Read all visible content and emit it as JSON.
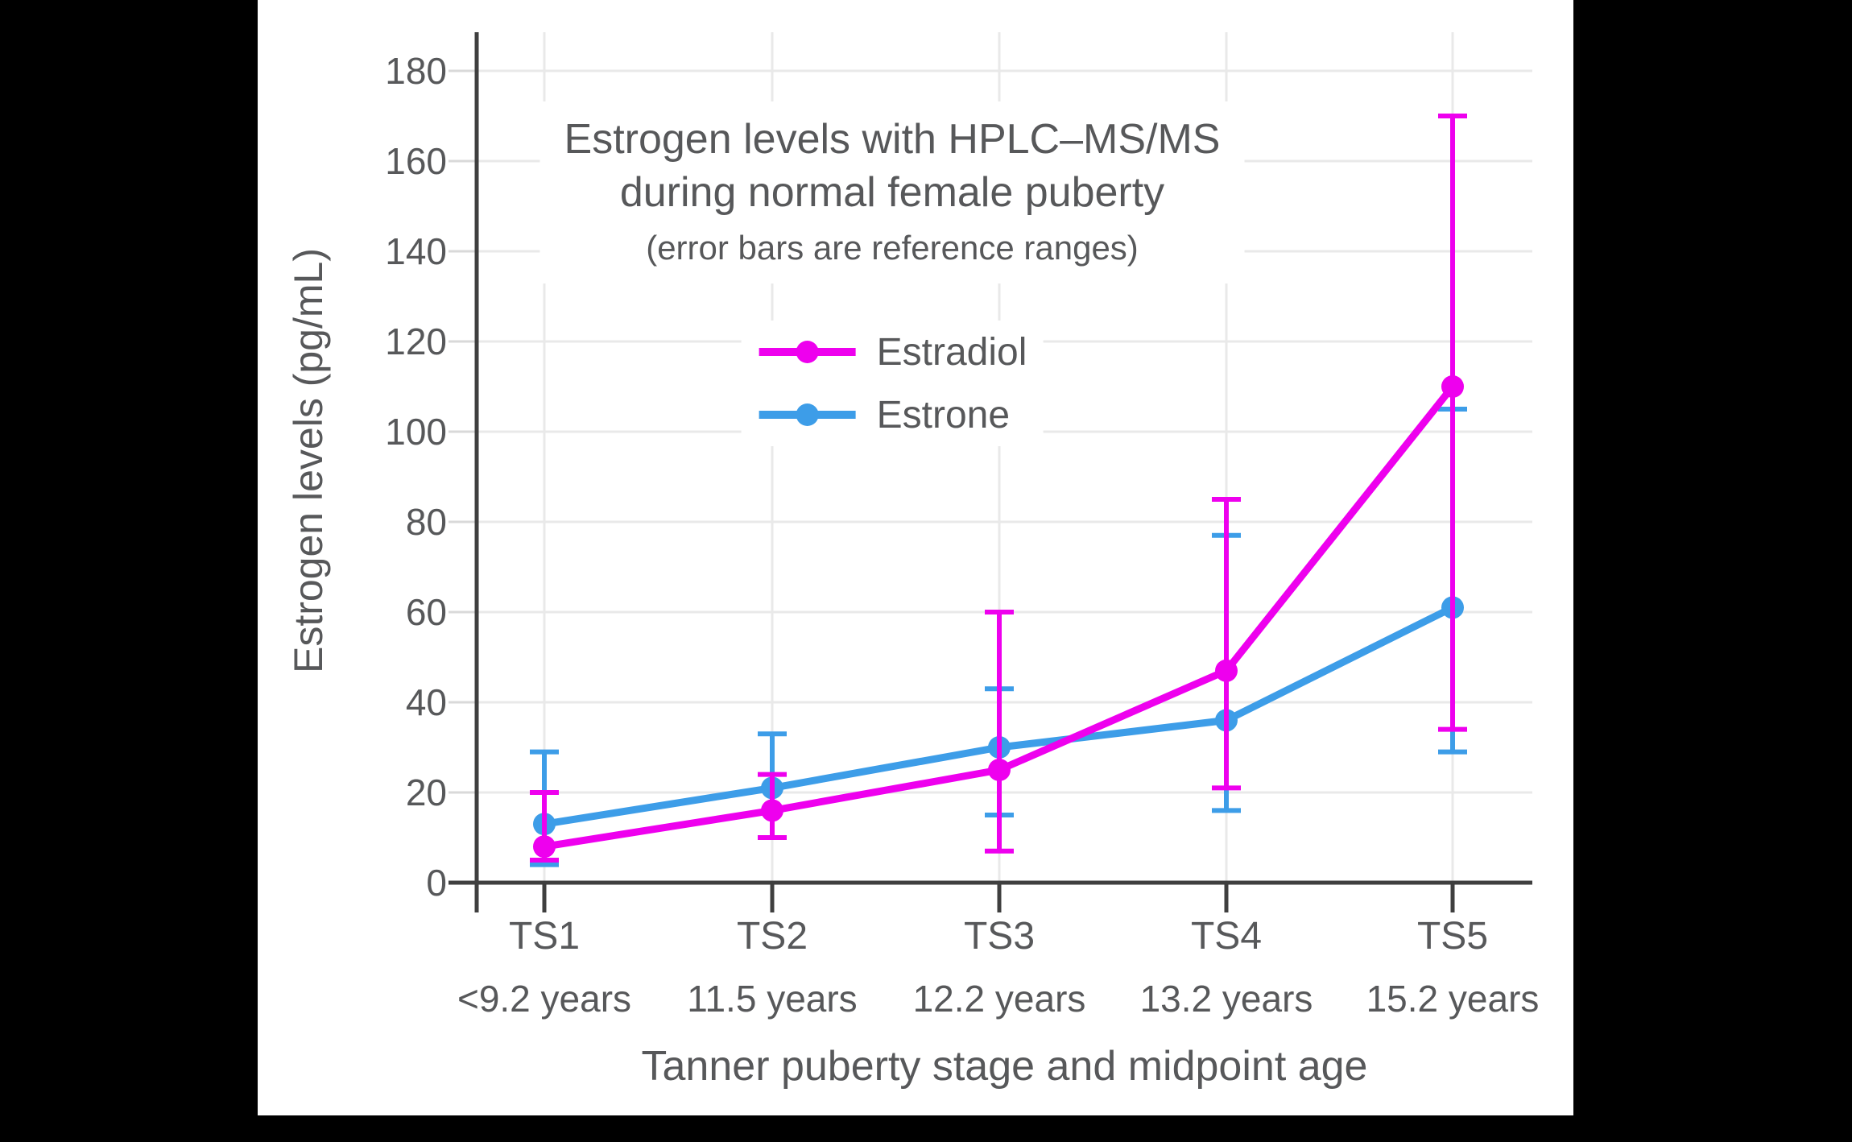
{
  "page": {
    "background_color": "#000000",
    "card_background_color": "#ffffff"
  },
  "colors": {
    "text": "#57585a",
    "axis": "#3f3f3f",
    "gridline": "#e9e9e9",
    "tick": "#d9d9d9",
    "estradiol": "#ee00ee",
    "estrone": "#3d9de8"
  },
  "chart_data": {
    "type": "line",
    "title": [
      "Estrogen levels with HPLC–MS/MS",
      "during normal female puberty"
    ],
    "subtitle": "(error bars are reference ranges)",
    "xlabel": "Tanner puberty stage and midpoint age",
    "ylabel": "Estrogen levels (pg/mL)",
    "units": "pg/mL",
    "ylim": [
      0,
      180
    ],
    "yticks": [
      0,
      20,
      40,
      60,
      80,
      100,
      120,
      140,
      160,
      180
    ],
    "grid": true,
    "legend_position": "upper-center",
    "error_bars": "reference ranges",
    "categories": [
      {
        "stage": "TS1",
        "age": "<9.2 years"
      },
      {
        "stage": "TS2",
        "age": "11.5 years"
      },
      {
        "stage": "TS3",
        "age": "12.2 years"
      },
      {
        "stage": "TS4",
        "age": "13.2 years"
      },
      {
        "stage": "TS5",
        "age": "15.2 years"
      }
    ],
    "series": [
      {
        "name": "Estradiol",
        "color": "#ee00ee",
        "values": [
          8,
          16,
          25,
          47,
          110
        ],
        "range_low": [
          5,
          10,
          7,
          21,
          34
        ],
        "range_high": [
          20,
          24,
          60,
          85,
          170
        ]
      },
      {
        "name": "Estrone",
        "color": "#3d9de8",
        "values": [
          13,
          21,
          30,
          36,
          61
        ],
        "range_low": [
          4,
          10,
          15,
          16,
          29
        ],
        "range_high": [
          29,
          33,
          43,
          77,
          105
        ]
      }
    ]
  }
}
